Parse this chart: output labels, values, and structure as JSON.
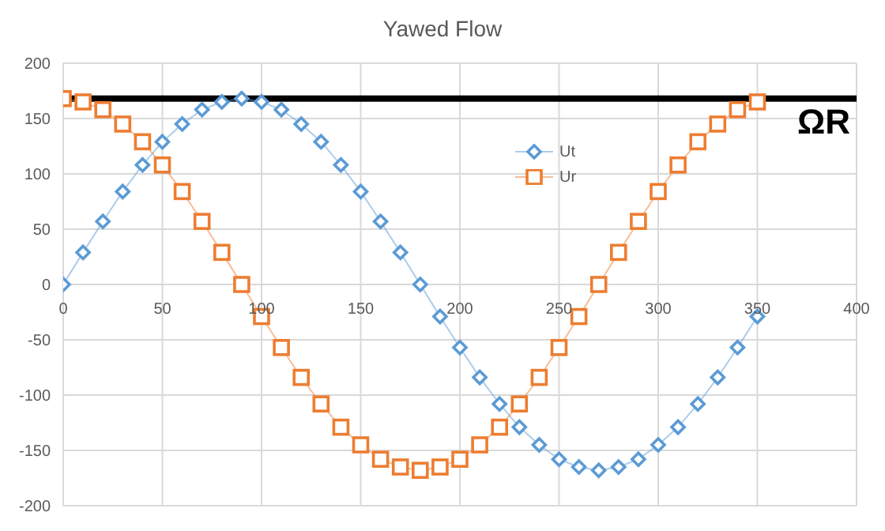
{
  "chart_data": {
    "type": "line",
    "title": "Yawed Flow",
    "x": [
      0,
      10,
      20,
      30,
      40,
      50,
      60,
      70,
      80,
      90,
      100,
      110,
      120,
      130,
      140,
      150,
      160,
      170,
      180,
      190,
      200,
      210,
      220,
      230,
      240,
      250,
      260,
      270,
      280,
      290,
      300,
      310,
      320,
      330,
      340,
      350
    ],
    "series": [
      {
        "name": "Ut",
        "color": "#5b9bd5",
        "marker": "diamond",
        "values": [
          0,
          29,
          57,
          84,
          108,
          129,
          145,
          158,
          165,
          168,
          165,
          158,
          145,
          129,
          108,
          84,
          57,
          29,
          0,
          -29,
          -57,
          -84,
          -108,
          -129,
          -145,
          -158,
          -165,
          -168,
          -165,
          -158,
          -145,
          -129,
          -108,
          -84,
          -57,
          -29
        ]
      },
      {
        "name": "Ur",
        "color": "#ed7d31",
        "marker": "square",
        "values": [
          168,
          165,
          158,
          145,
          129,
          108,
          84,
          57,
          29,
          0,
          -29,
          -57,
          -84,
          -108,
          -129,
          -145,
          -158,
          -165,
          -168,
          -165,
          -158,
          -145,
          -129,
          -108,
          -84,
          -57,
          -29,
          0,
          29,
          57,
          84,
          108,
          129,
          145,
          158,
          165
        ]
      }
    ],
    "xlim": [
      0,
      400
    ],
    "xticks": [
      0,
      50,
      100,
      150,
      200,
      250,
      300,
      350,
      400
    ],
    "ylim": [
      -200,
      200
    ],
    "yticks": [
      -200,
      -150,
      -100,
      -50,
      0,
      50,
      100,
      150,
      200
    ],
    "ref_lines": [
      {
        "axis": "y",
        "value": 168,
        "label": "ΩR",
        "color": "#000000"
      }
    ],
    "grid": true,
    "legend": "top",
    "line_style": "solid"
  }
}
